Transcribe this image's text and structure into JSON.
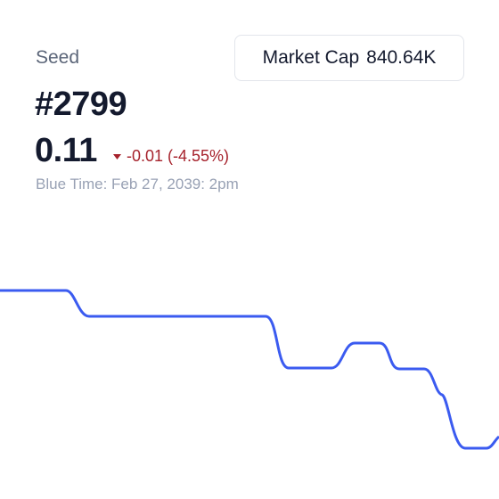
{
  "header": {
    "category": "Seed",
    "token_id": "#2799",
    "price": "0.11",
    "change": "-0.01 (-4.55%)",
    "timestamp": "Blue Time: Feb 27, 2039: 2pm"
  },
  "market_cap": {
    "label": "Market Cap",
    "value": "840.64K"
  }
}
